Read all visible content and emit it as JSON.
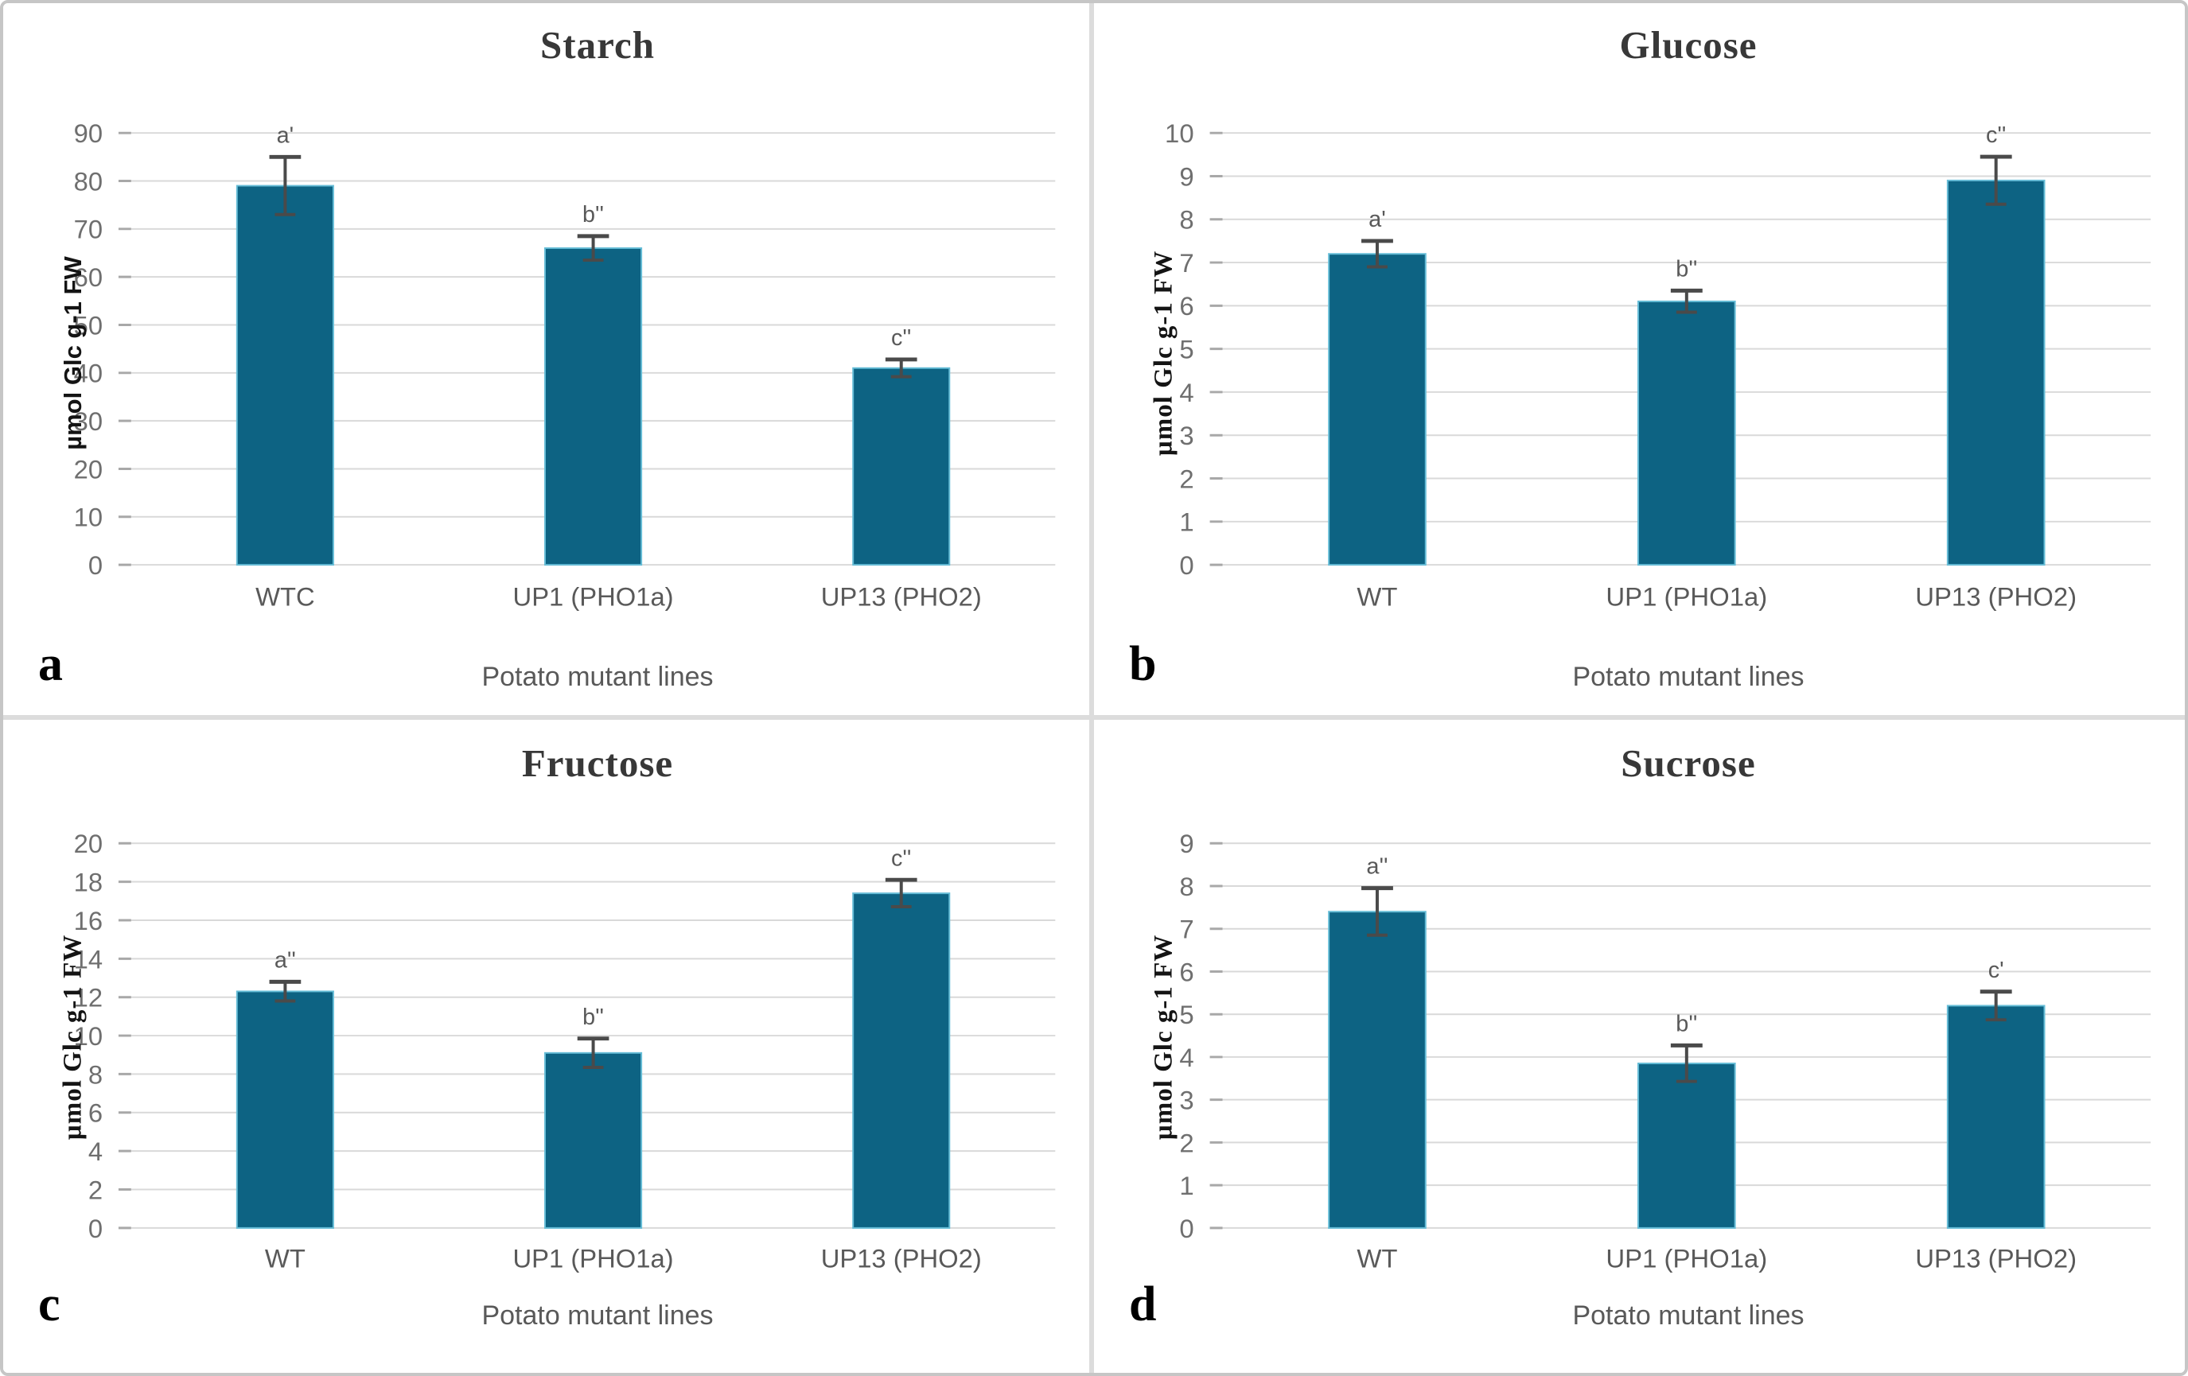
{
  "figure_caption_letters": [
    "a",
    "b",
    "c",
    "d"
  ],
  "style": {
    "bar_color": "#0d6383",
    "bar_edge_color": "#66bdd7",
    "grid_color": "#d9d9d9",
    "tick_color": "#a8a8a8",
    "error_color": "#4a4a4a",
    "title_color": "#383838",
    "axis_text_color": "#595959",
    "border_color": "#dcdcdc"
  },
  "chart_data": [
    {
      "panel_label": "a",
      "type": "bar",
      "title": "Starch",
      "xlabel": "Potato mutant lines",
      "ylabel": "µmol Glc g-1 FW",
      "categories": [
        "WTC",
        "UP1 (PHO1a)",
        "UP13 (PHO2)"
      ],
      "values": [
        79,
        66,
        41
      ],
      "errors": [
        6,
        2.5,
        1.8
      ],
      "sig_labels": [
        "a'",
        "b''",
        "c''"
      ],
      "ylim": [
        0,
        90
      ],
      "ystep": 10,
      "grid": true,
      "legend": false
    },
    {
      "panel_label": "b",
      "type": "bar",
      "title": "Glucose",
      "xlabel": "Potato mutant lines",
      "ylabel": "µmol Glc g-1 FW",
      "categories": [
        "WT",
        "UP1 (PHO1a)",
        "UP13 (PHO2)"
      ],
      "values": [
        7.2,
        6.1,
        8.9
      ],
      "errors": [
        0.3,
        0.25,
        0.55
      ],
      "sig_labels": [
        "a'",
        "b''",
        "c''"
      ],
      "ylim": [
        0,
        10
      ],
      "ystep": 1,
      "grid": true,
      "legend": false
    },
    {
      "panel_label": "c",
      "type": "bar",
      "title": "Fructose",
      "xlabel": "Potato mutant lines",
      "ylabel": "µmol Glc g-1 FW",
      "categories": [
        "WT",
        "UP1 (PHO1a)",
        "UP13 (PHO2)"
      ],
      "values": [
        12.3,
        9.1,
        17.4
      ],
      "errors": [
        0.5,
        0.75,
        0.7
      ],
      "sig_labels": [
        "a''",
        "b''",
        "c''"
      ],
      "ylim": [
        0,
        20
      ],
      "ystep": 2,
      "grid": true,
      "legend": false
    },
    {
      "panel_label": "d",
      "type": "bar",
      "title": "Sucrose",
      "xlabel": "Potato mutant lines",
      "ylabel": "µmol Glc g-1 FW",
      "categories": [
        "WT",
        "UP1 (PHO1a)",
        "UP13 (PHO2)"
      ],
      "values": [
        7.4,
        3.85,
        5.2
      ],
      "errors": [
        0.55,
        0.42,
        0.33
      ],
      "sig_labels": [
        "a''",
        "b''",
        "c'"
      ],
      "ylim": [
        0,
        9
      ],
      "ystep": 1,
      "grid": true,
      "legend": false
    }
  ]
}
